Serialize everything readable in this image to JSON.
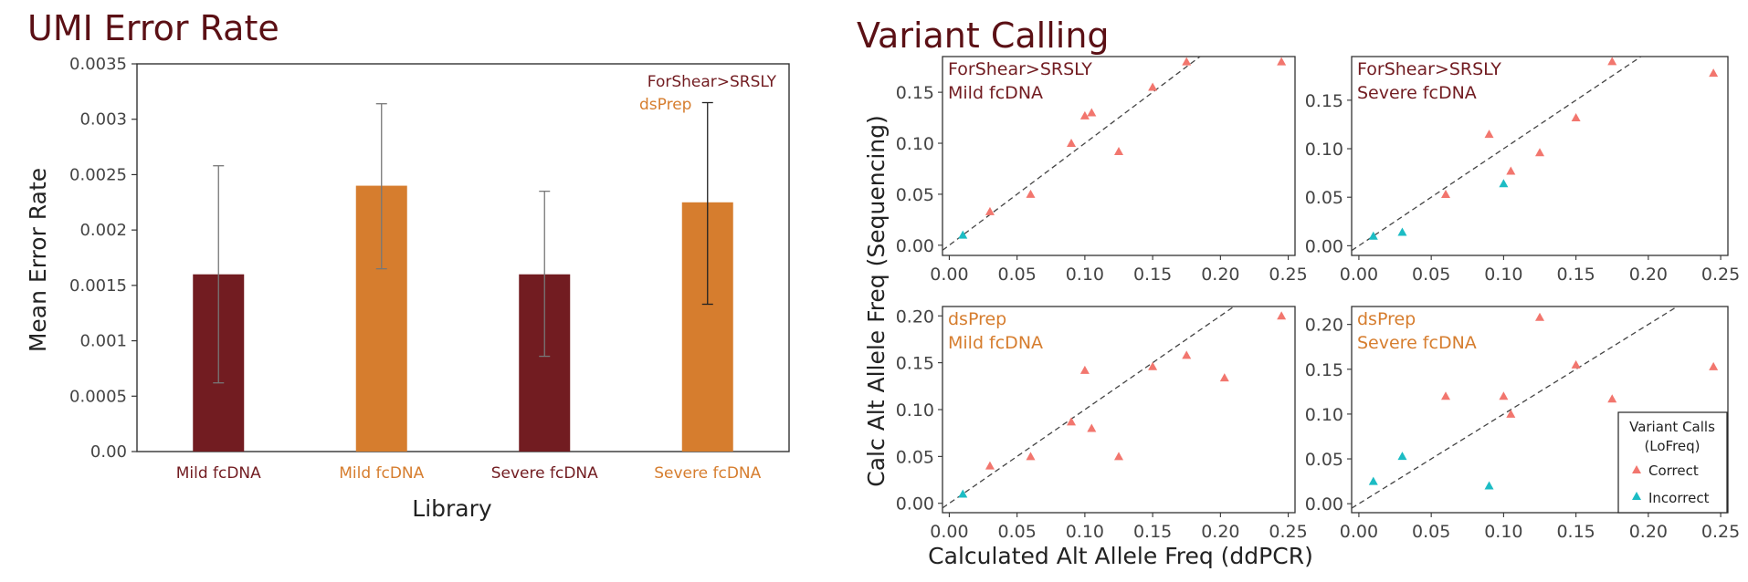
{
  "colors": {
    "forshear": "#721c21",
    "dsprep": "#d67d2e",
    "correct": "#f2766e",
    "incorrect": "#1cbcc4",
    "title": "#5b1015",
    "axis": "#222222",
    "tick": "#555555"
  },
  "chart_data": [
    {
      "type": "bar",
      "title": "UMI Error Rate",
      "xlabel": "Library",
      "ylabel": "Mean Error Rate",
      "ylim": [
        0,
        0.0035
      ],
      "yticks": [
        "0.00",
        "0.0005",
        "0.001",
        "0.0015",
        "0.002",
        "0.0025",
        "0.003",
        "0.0035"
      ],
      "categories": [
        "Mild fcDNA",
        "Mild fcDNA",
        "Severe fcDNA",
        "Severe fcDNA"
      ],
      "category_groups": [
        "ForShear>SRSLY",
        "dsPrep",
        "ForShear>SRSLY",
        "dsPrep"
      ],
      "values": [
        0.0016,
        0.0024,
        0.0016,
        0.00225
      ],
      "error_low": [
        0.00062,
        0.00165,
        0.00086,
        0.00133
      ],
      "error_high": [
        0.00258,
        0.00314,
        0.00235,
        0.00315
      ],
      "legend": [
        "ForShear>SRSLY",
        "dsPrep"
      ],
      "legend_position": "top-right",
      "grid": false
    },
    {
      "type": "scatter",
      "title": "Variant Calling",
      "xlabel": "Calculated Alt Allele Freq (ddPCR)",
      "ylabel": "Calc Alt Allele Freq (Sequencing)",
      "xticks": [
        "0.00",
        "0.05",
        "0.10",
        "0.15",
        "0.20",
        "0.25"
      ],
      "reference_line": "y = x (dashed)",
      "legend": {
        "title_line1": "Variant Calls",
        "title_line2": "(LoFreq)",
        "items": [
          "Correct",
          "Incorrect"
        ],
        "position": "bottom-right"
      },
      "panels": [
        {
          "label_line1": "ForShear>SRSLY",
          "label_line2": "Mild fcDNA",
          "group": "forshear",
          "ylim": [
            -0.01,
            0.185
          ],
          "xlim": [
            -0.005,
            0.255
          ],
          "yticks": [
            "0.00",
            "0.05",
            "0.10",
            "0.15"
          ],
          "correct": [
            [
              0.03,
              0.033
            ],
            [
              0.06,
              0.05
            ],
            [
              0.09,
              0.1
            ],
            [
              0.1,
              0.127
            ],
            [
              0.105,
              0.13
            ],
            [
              0.125,
              0.092
            ],
            [
              0.15,
              0.155
            ],
            [
              0.175,
              0.18
            ],
            [
              0.245,
              0.18
            ]
          ],
          "incorrect": [
            [
              0.01,
              0.01
            ]
          ]
        },
        {
          "label_line1": "ForShear>SRSLY",
          "label_line2": "Severe fcDNA",
          "group": "forshear",
          "ylim": [
            -0.01,
            0.195
          ],
          "xlim": [
            -0.005,
            0.255
          ],
          "yticks": [
            "0.00",
            "0.05",
            "0.10",
            "0.15"
          ],
          "correct": [
            [
              0.06,
              0.053
            ],
            [
              0.09,
              0.115
            ],
            [
              0.105,
              0.077
            ],
            [
              0.125,
              0.096
            ],
            [
              0.15,
              0.132
            ],
            [
              0.175,
              0.19
            ],
            [
              0.245,
              0.178
            ]
          ],
          "incorrect": [
            [
              0.01,
              0.01
            ],
            [
              0.03,
              0.014
            ],
            [
              0.1,
              0.064
            ]
          ]
        },
        {
          "label_line1": "dsPrep",
          "label_line2": "Mild fcDNA",
          "group": "dsprep",
          "ylim": [
            -0.01,
            0.21
          ],
          "xlim": [
            -0.005,
            0.255
          ],
          "yticks": [
            "0.00",
            "0.05",
            "0.10",
            "0.15",
            "0.20"
          ],
          "correct": [
            [
              0.03,
              0.04
            ],
            [
              0.06,
              0.05
            ],
            [
              0.09,
              0.087
            ],
            [
              0.1,
              0.142
            ],
            [
              0.105,
              0.08
            ],
            [
              0.125,
              0.05
            ],
            [
              0.15,
              0.146
            ],
            [
              0.175,
              0.158
            ],
            [
              0.203,
              0.134
            ],
            [
              0.245,
              0.2
            ]
          ],
          "incorrect": [
            [
              0.01,
              0.01
            ]
          ]
        },
        {
          "label_line1": "dsPrep",
          "label_line2": "Severe fcDNA",
          "group": "dsprep",
          "ylim": [
            -0.01,
            0.22
          ],
          "xlim": [
            -0.005,
            0.255
          ],
          "yticks": [
            "0.00",
            "0.05",
            "0.10",
            "0.15",
            "0.20"
          ],
          "correct": [
            [
              0.06,
              0.12
            ],
            [
              0.1,
              0.12
            ],
            [
              0.105,
              0.1
            ],
            [
              0.125,
              0.208
            ],
            [
              0.15,
              0.155
            ],
            [
              0.175,
              0.117
            ],
            [
              0.245,
              0.153
            ]
          ],
          "incorrect": [
            [
              0.01,
              0.025
            ],
            [
              0.03,
              0.053
            ],
            [
              0.09,
              0.02
            ]
          ]
        }
      ]
    }
  ]
}
